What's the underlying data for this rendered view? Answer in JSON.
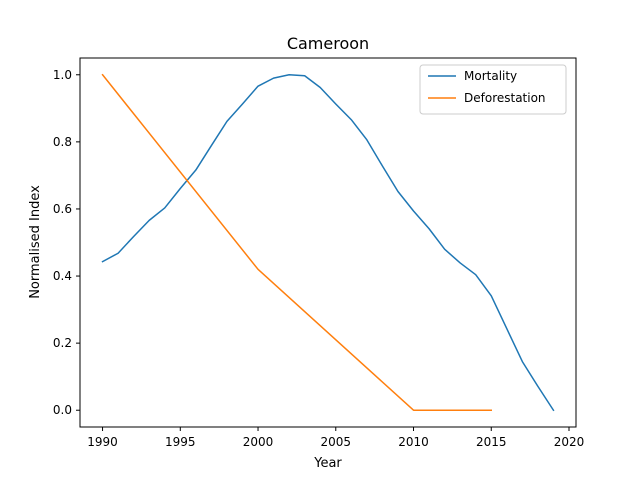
{
  "chart_data": {
    "type": "line",
    "title": "Cameroon",
    "xlabel": "Year",
    "ylabel": "Normalised Index",
    "xlim": [
      1988.55,
      2020.45
    ],
    "ylim": [
      -0.05,
      1.05
    ],
    "xticks": [
      1990,
      1995,
      2000,
      2005,
      2010,
      2015,
      2020
    ],
    "yticks": [
      0.0,
      0.2,
      0.4,
      0.6,
      0.8,
      1.0
    ],
    "ytick_labels": [
      "0.0",
      "0.2",
      "0.4",
      "0.6",
      "0.8",
      "1.0"
    ],
    "grid": false,
    "legend_position": "top-right",
    "series": [
      {
        "name": "Mortality",
        "color": "#1f77b4",
        "x": [
          1990,
          1991,
          1992,
          1993,
          1994,
          1995,
          1996,
          1997,
          1998,
          1999,
          2000,
          2001,
          2002,
          2003,
          2004,
          2005,
          2006,
          2007,
          2008,
          2009,
          2010,
          2011,
          2012,
          2013,
          2014,
          2015,
          2016,
          2017,
          2018,
          2019
        ],
        "y": [
          0.443,
          0.468,
          0.518,
          0.566,
          0.603,
          0.661,
          0.716,
          0.789,
          0.861,
          0.913,
          0.966,
          0.99,
          1.0,
          0.997,
          0.962,
          0.913,
          0.866,
          0.806,
          0.728,
          0.652,
          0.594,
          0.541,
          0.48,
          0.439,
          0.404,
          0.341,
          0.243,
          0.145,
          0.071,
          0.0
        ]
      },
      {
        "name": "Deforestation",
        "color": "#ff7f0e",
        "x": [
          1990,
          2000,
          2010,
          2015
        ],
        "y": [
          1.0,
          0.42,
          0.0,
          0.0
        ]
      }
    ]
  }
}
